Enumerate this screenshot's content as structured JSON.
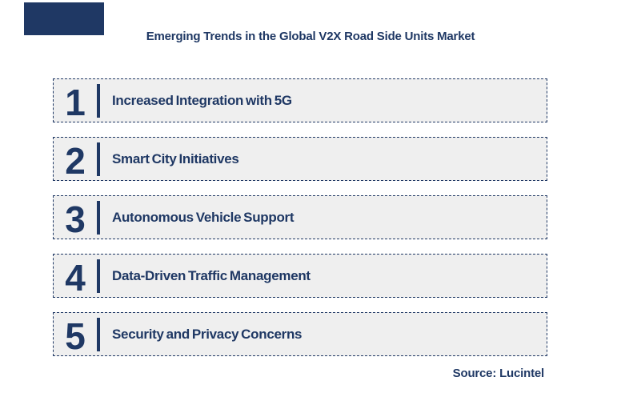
{
  "title": "Emerging Trends in the Global V2X Road Side Units Market",
  "source_note": "Source: Lucintel",
  "colors": {
    "navy": "#1F3864",
    "accent_block": "#1F3864",
    "box_fill": "#EFEFEF",
    "background": "#FFFFFF"
  },
  "trends": [
    {
      "number": "1",
      "label": "Increased Integration with 5G"
    },
    {
      "number": "2",
      "label": "Smart City Initiatives"
    },
    {
      "number": "3",
      "label": "Autonomous Vehicle Support"
    },
    {
      "number": "4",
      "label": "Data-Driven Traffic Management"
    },
    {
      "number": "5",
      "label": "Security and Privacy Concerns"
    }
  ]
}
